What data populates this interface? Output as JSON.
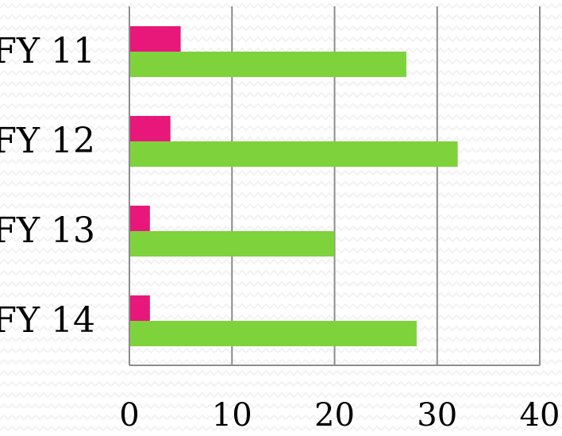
{
  "chart_data": {
    "type": "bar",
    "orientation": "horizontal",
    "categories": [
      "FY 11",
      "FY 12",
      "FY 13",
      "FY 14"
    ],
    "series": [
      {
        "color": "#e8177a",
        "values": [
          5,
          4,
          2,
          2
        ]
      },
      {
        "color": "#7ed23c",
        "values": [
          27,
          32,
          20,
          28
        ]
      }
    ],
    "xlim": [
      0,
      40
    ],
    "xticks": [
      0,
      10,
      20,
      30,
      40
    ],
    "xtick_labels": [
      "0",
      "10",
      "20",
      "30",
      "40"
    ],
    "grid": "vertical",
    "legend": "none",
    "title": "",
    "xlabel": "",
    "ylabel": ""
  }
}
